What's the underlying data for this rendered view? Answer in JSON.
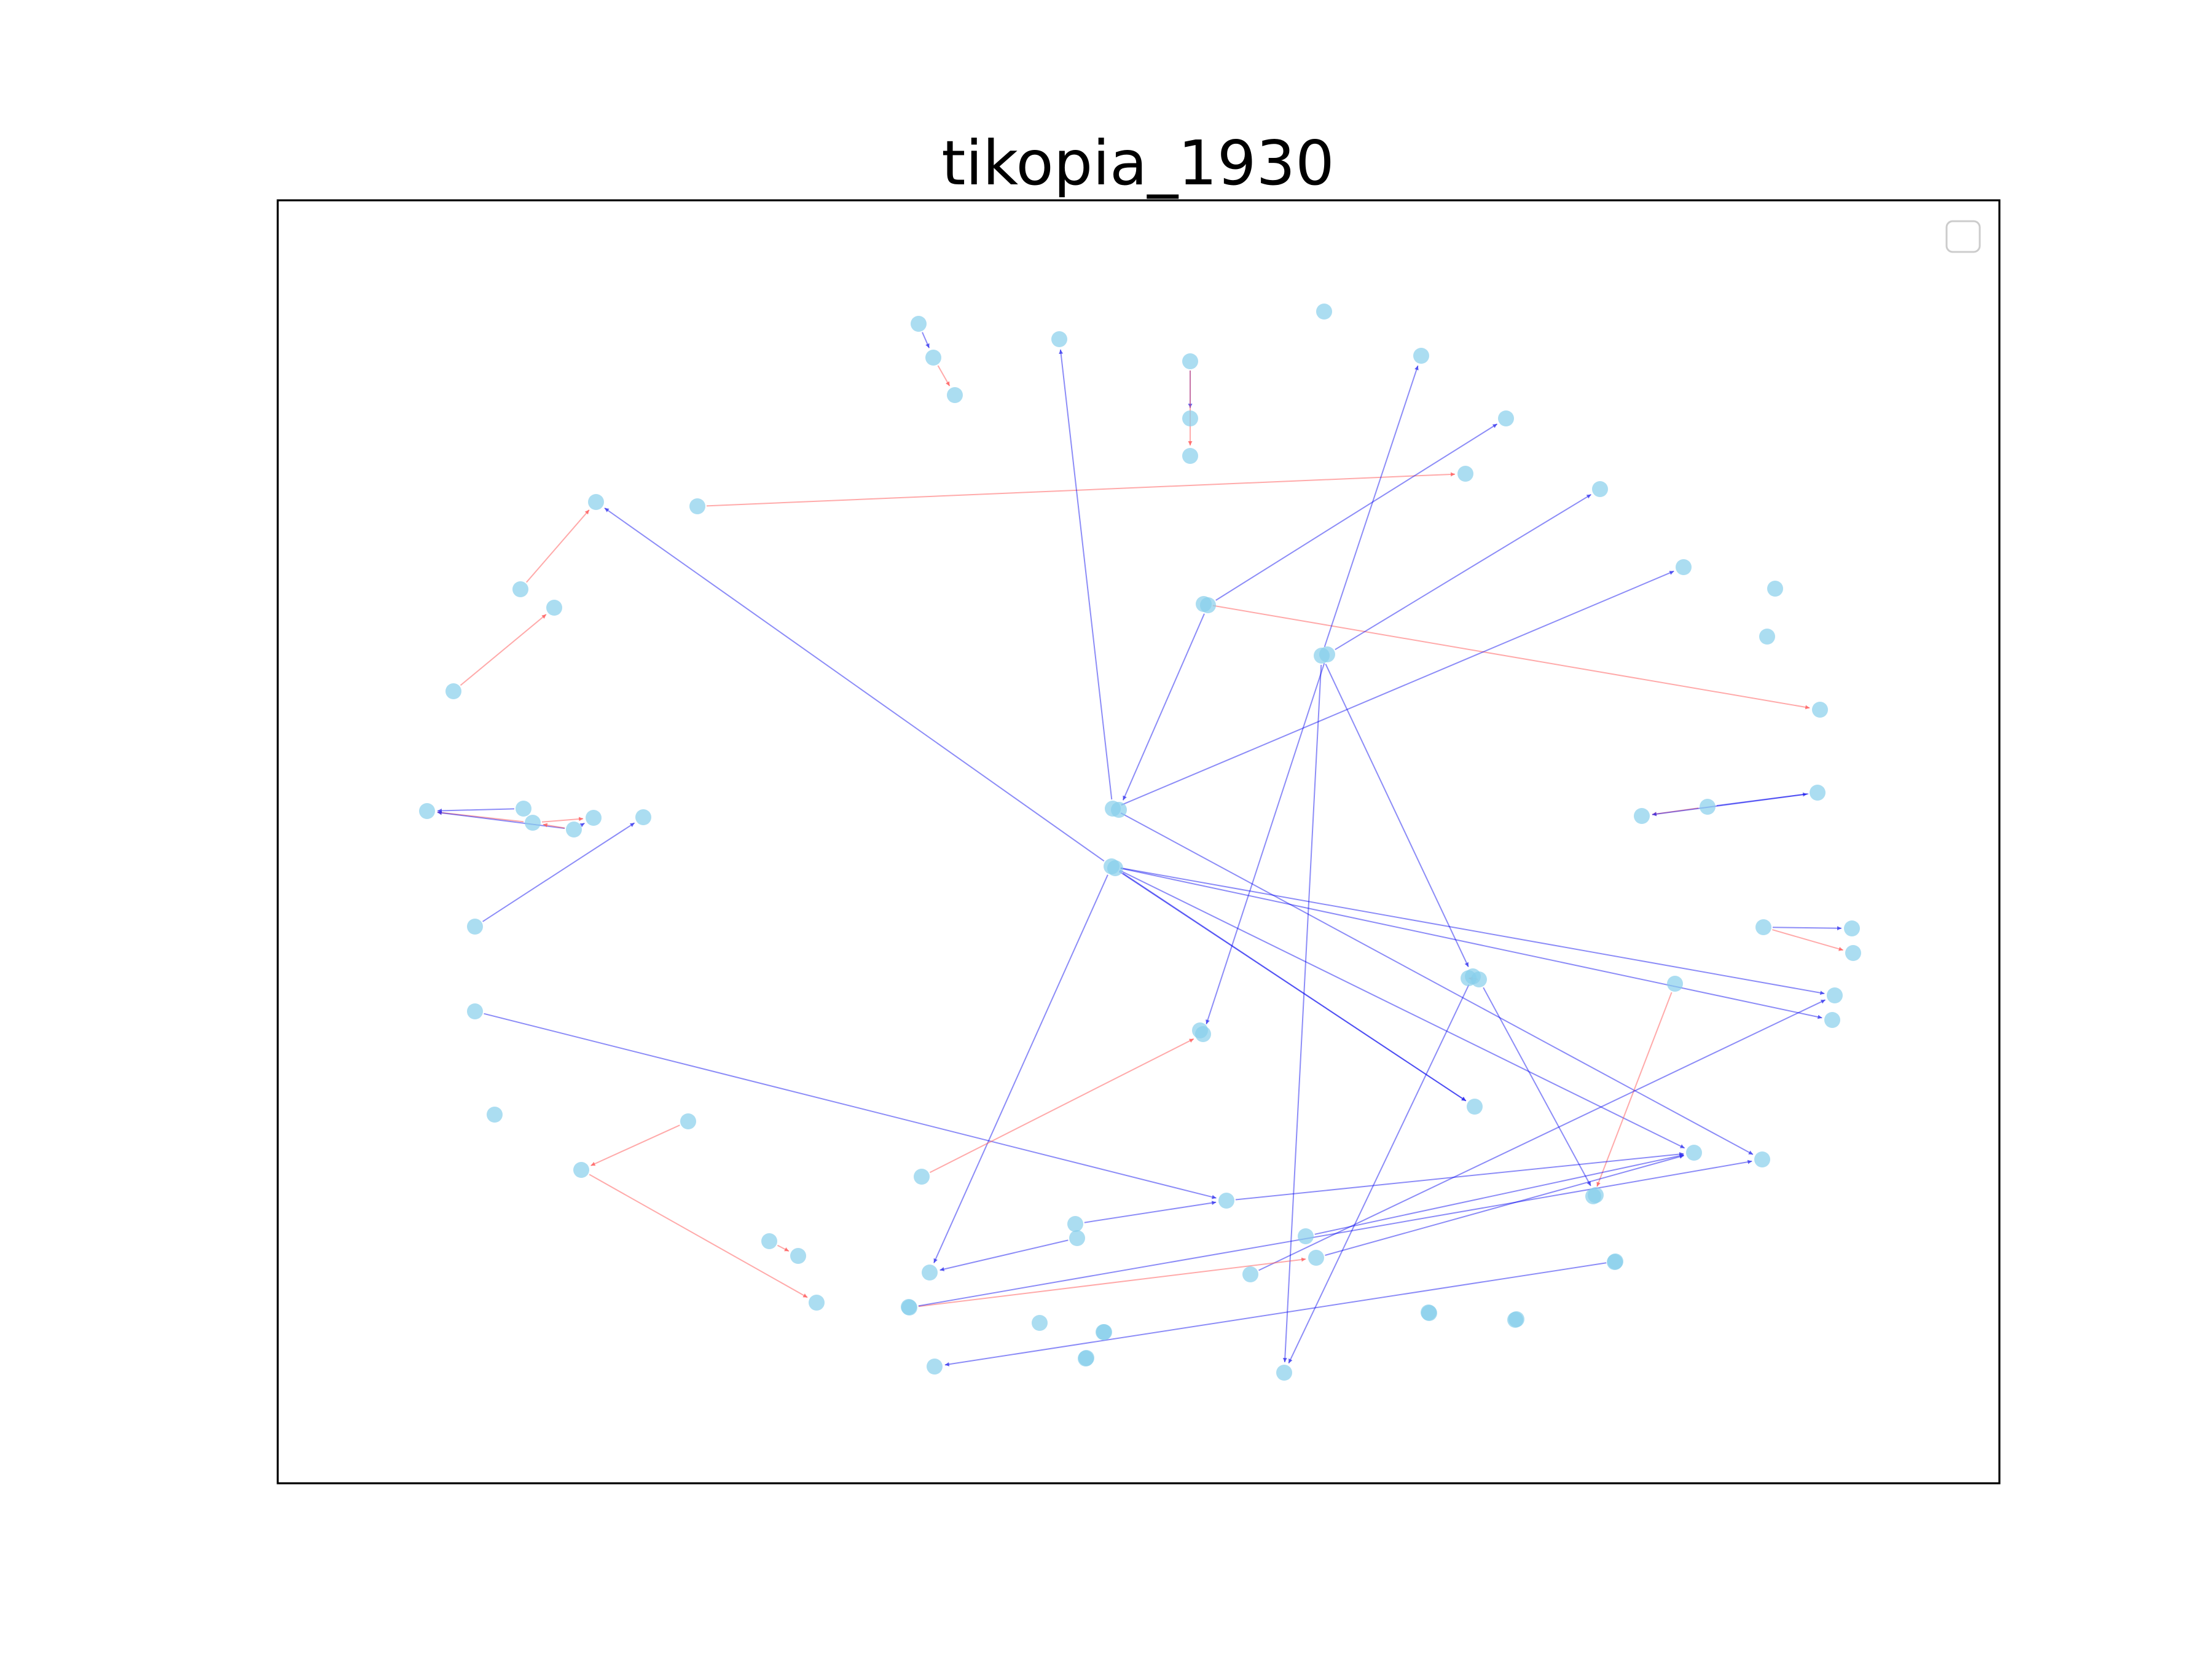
{
  "figure": {
    "title": "tikopia_1930",
    "colors": {
      "node": "#87CEEB",
      "edge_positive": "#0000EE",
      "edge_negative": "#FF5555",
      "frame": "#000000",
      "legend_border": "#CCCCCC"
    },
    "legend": {
      "placement": "top-right",
      "entries": []
    }
  },
  "graph": {
    "directed": true,
    "nodes": [
      "n01",
      "n02",
      "n03",
      "n04",
      "n05",
      "n06",
      "n07",
      "n08",
      "n09",
      "n10",
      "n11",
      "n12",
      "n13",
      "n14",
      "n15",
      "n16",
      "n17",
      "n18",
      "n19",
      "n20",
      "n21",
      "n22",
      "n23",
      "n24",
      "n25",
      "n26",
      "n27",
      "n28",
      "n29",
      "n30",
      "n31",
      "n32",
      "n33",
      "n34",
      "n35",
      "n36",
      "n37",
      "n38",
      "n39",
      "n40",
      "n41",
      "n42",
      "n43",
      "n44",
      "n45",
      "n46",
      "n47",
      "n48",
      "n49",
      "n50",
      "n51",
      "n52",
      "n53",
      "n54",
      "n55",
      "n56",
      "n57",
      "n58",
      "n59",
      "n60",
      "n61",
      "n62",
      "n63",
      "n64",
      "n65",
      "n66",
      "n67",
      "n68",
      "n69",
      "n70",
      "n71",
      "n72",
      "n73",
      "n74",
      "n75",
      "n76",
      "n77",
      "n78",
      "n79",
      "n80",
      "n81",
      "n82",
      "n83",
      "n84",
      "n85"
    ],
    "edges": [
      {
        "source": "n01",
        "target": "n02",
        "sign": "positive"
      },
      {
        "source": "n02",
        "target": "n03",
        "sign": "negative"
      },
      {
        "source": "n05",
        "target": "n06",
        "sign": "positive"
      },
      {
        "source": "n05",
        "target": "n07",
        "sign": "negative"
      },
      {
        "source": "n14",
        "target": "n10",
        "sign": "negative"
      },
      {
        "source": "n15",
        "target": "n13",
        "sign": "negative"
      },
      {
        "source": "n17",
        "target": "n16",
        "sign": "negative"
      },
      {
        "source": "n20",
        "target": "n18",
        "sign": "negative"
      },
      {
        "source": "n21",
        "target": "n18",
        "sign": "positive"
      },
      {
        "source": "n19",
        "target": "n18",
        "sign": "positive"
      },
      {
        "source": "n21",
        "target": "n22",
        "sign": "positive"
      },
      {
        "source": "n21",
        "target": "n20",
        "sign": "negative"
      },
      {
        "source": "n20",
        "target": "n22",
        "sign": "negative"
      },
      {
        "source": "n24",
        "target": "n23",
        "sign": "positive"
      },
      {
        "source": "n29",
        "target": "n28",
        "sign": "negative"
      },
      {
        "source": "n30",
        "target": "n11",
        "sign": "positive"
      },
      {
        "source": "n30",
        "target": "n34",
        "sign": "positive"
      },
      {
        "source": "n31",
        "target": "n09",
        "sign": "positive"
      },
      {
        "source": "n31",
        "target": "n37",
        "sign": "positive"
      },
      {
        "source": "n33",
        "target": "n04",
        "sign": "positive"
      },
      {
        "source": "n32",
        "target": "n52",
        "sign": "positive"
      },
      {
        "source": "n32",
        "target": "n12",
        "sign": "positive"
      },
      {
        "source": "n33",
        "target": "n25",
        "sign": "positive"
      },
      {
        "source": "n33",
        "target": "n67",
        "sign": "positive"
      },
      {
        "source": "n31",
        "target": "n71",
        "sign": "positive"
      },
      {
        "source": "n36",
        "target": "n40",
        "sign": "positive"
      },
      {
        "source": "n38",
        "target": "n39",
        "sign": "negative"
      },
      {
        "source": "n39",
        "target": "n41",
        "sign": "positive"
      },
      {
        "source": "n42",
        "target": "n43",
        "sign": "negative"
      },
      {
        "source": "n42",
        "target": "n44",
        "sign": "positive"
      },
      {
        "source": "n45",
        "target": "n46",
        "sign": "positive"
      },
      {
        "source": "n45",
        "target": "n47",
        "sign": "negative"
      },
      {
        "source": "n44",
        "target": "n43",
        "sign": "positive"
      },
      {
        "source": "n35",
        "target": "n13",
        "sign": "positive"
      },
      {
        "source": "n35",
        "target": "n62",
        "sign": "positive"
      },
      {
        "source": "n35",
        "target": "n50",
        "sign": "positive"
      },
      {
        "source": "n35",
        "target": "n66",
        "sign": "positive"
      },
      {
        "source": "n35",
        "target": "n49",
        "sign": "positive"
      },
      {
        "source": "n35",
        "target": "n40",
        "sign": "positive"
      },
      {
        "source": "n48",
        "target": "n65",
        "sign": "negative"
      },
      {
        "source": "n53",
        "target": "n59",
        "sign": "positive"
      },
      {
        "source": "n54",
        "target": "n58",
        "sign": "negative"
      },
      {
        "source": "n56",
        "target": "n54",
        "sign": "negative"
      },
      {
        "source": "n57",
        "target": "n52",
        "sign": "negative"
      },
      {
        "source": "n60",
        "target": "n59",
        "sign": "positive"
      },
      {
        "source": "n61",
        "target": "n62",
        "sign": "positive"
      },
      {
        "source": "n63",
        "target": "n64",
        "sign": "negative"
      },
      {
        "source": "n68",
        "target": "n66",
        "sign": "positive"
      },
      {
        "source": "n69",
        "target": "n66",
        "sign": "positive"
      },
      {
        "source": "n70",
        "target": "n49",
        "sign": "positive"
      },
      {
        "source": "n72",
        "target": "n69",
        "sign": "negative"
      },
      {
        "source": "n72",
        "target": "n67",
        "sign": "positive"
      },
      {
        "source": "n37",
        "target": "n71",
        "sign": "positive"
      },
      {
        "source": "n78",
        "target": "n79",
        "sign": "positive"
      },
      {
        "source": "n59",
        "target": "n66",
        "sign": "positive"
      }
    ]
  }
}
